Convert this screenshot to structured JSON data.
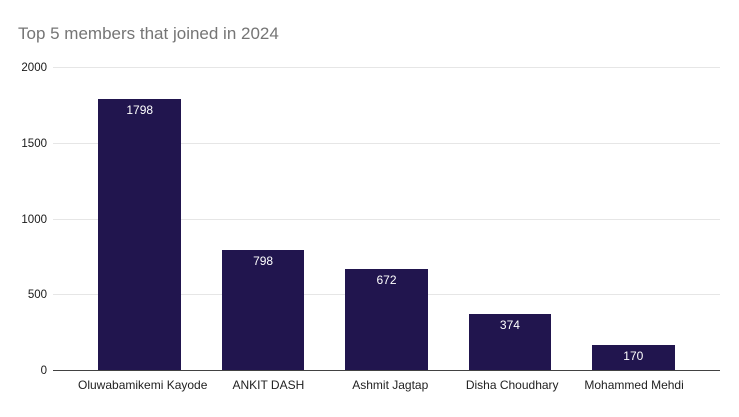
{
  "title": "Top 5 members that joined in 2024",
  "colors": {
    "background": "#ffffff",
    "bar": "#21154e",
    "title_text": "#757575",
    "gridline": "#e6e6e6",
    "axis_line": "#424242",
    "tick_text": "#1a1a1a",
    "x_label_text": "#222222",
    "value_label_text": "#ffffff"
  },
  "chart_data": {
    "type": "bar",
    "title": "Top 5 members that joined in 2024",
    "categories": [
      "Oluwabamikemi Kayode",
      "ANKIT DASH",
      "Ashmit Jagtap",
      "Disha Choudhary",
      "Mohammed Mehdi"
    ],
    "values": [
      1798,
      798,
      672,
      374,
      170
    ],
    "value_labels": [
      "1798",
      "798",
      "672",
      "374",
      "170"
    ],
    "value_label_position": "inside-top",
    "xlabel": "",
    "ylabel": "",
    "ylim": [
      0,
      2000
    ],
    "yticks": [
      0,
      500,
      1000,
      1500,
      2000
    ],
    "ytick_labels": [
      "0",
      "500",
      "1000",
      "1500",
      "2000"
    ],
    "grid": true,
    "legend_position": "none",
    "orientation": "vertical"
  }
}
